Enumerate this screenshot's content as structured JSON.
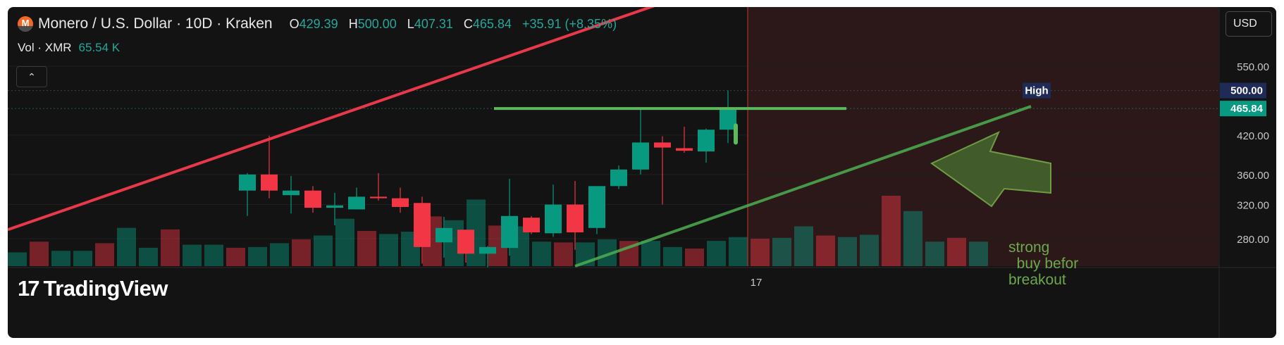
{
  "header": {
    "symbol_title": "Monero / U.S. Dollar · 10D · Kraken",
    "logo_glyph": "M",
    "open_label": "O",
    "open_value": "429.39",
    "high_label": "H",
    "high_value": "500.00",
    "low_label": "L",
    "low_value": "407.31",
    "close_label": "C",
    "close_value": "465.84",
    "change": "+35.91 (+8.35%)"
  },
  "volume": {
    "label": "Vol · XMR",
    "value": "65.54 K"
  },
  "collapse_glyph": "⌃",
  "currency_button": "USD",
  "watermark": {
    "mark": "17",
    "text": "TradingView"
  },
  "annotation": "strong\n  buy befor\nbreakout",
  "colors": {
    "up": "#089981",
    "down": "#f23645",
    "trend_red": "#e8394a",
    "trend_green": "#4caf50",
    "resistance": "#5cb85c",
    "future_zone": "#2c1818",
    "bg": "#131313"
  },
  "chart_data": {
    "type": "candlestick",
    "y_ticks": [
      550,
      420,
      360,
      320,
      280
    ],
    "price_badges": [
      {
        "label": "High",
        "value": "500.00"
      },
      {
        "value": "465.84"
      }
    ],
    "x_ticks": [
      "17"
    ],
    "candles": [
      {
        "o": 338,
        "h": 362,
        "l": 306,
        "c": 360
      },
      {
        "o": 360,
        "h": 419,
        "l": 328,
        "c": 338
      },
      {
        "o": 332,
        "h": 358,
        "l": 309,
        "c": 338
      },
      {
        "o": 338,
        "h": 344,
        "l": 310,
        "c": 316
      },
      {
        "o": 316,
        "h": 335,
        "l": 295,
        "c": 319
      },
      {
        "o": 314,
        "h": 342,
        "l": 314,
        "c": 330
      },
      {
        "o": 330,
        "h": 362,
        "l": 325,
        "c": 328
      },
      {
        "o": 328,
        "h": 342,
        "l": 310,
        "c": 317
      },
      {
        "o": 322,
        "h": 330,
        "l": 254,
        "c": 271
      },
      {
        "o": 276,
        "h": 305,
        "l": 260,
        "c": 292
      },
      {
        "o": 290,
        "h": 290,
        "l": 255,
        "c": 264
      },
      {
        "o": 264,
        "h": 272,
        "l": 250,
        "c": 271
      },
      {
        "o": 270,
        "h": 354,
        "l": 262,
        "c": 306
      },
      {
        "o": 304,
        "h": 306,
        "l": 285,
        "c": 287
      },
      {
        "o": 286,
        "h": 346,
        "l": 282,
        "c": 320
      },
      {
        "o": 320,
        "h": 351,
        "l": 268,
        "c": 287
      },
      {
        "o": 292,
        "h": 343,
        "l": 285,
        "c": 344
      },
      {
        "o": 344,
        "h": 373,
        "l": 340,
        "c": 367
      },
      {
        "o": 367,
        "h": 466,
        "l": 360,
        "c": 408
      },
      {
        "o": 408,
        "h": 418,
        "l": 320,
        "c": 400
      },
      {
        "o": 399,
        "h": 434,
        "l": 392,
        "c": 395
      },
      {
        "o": 394,
        "h": 431,
        "l": 377,
        "c": 429
      },
      {
        "o": 429,
        "h": 500,
        "l": 407,
        "c": 466
      }
    ],
    "volumes": [
      18,
      32,
      20,
      20,
      30,
      50,
      24,
      48,
      28,
      28,
      24,
      25,
      30,
      35,
      40,
      62,
      46,
      42,
      45,
      65,
      60,
      87,
      53,
      52,
      32,
      31,
      31,
      35,
      33,
      33,
      25,
      23,
      33,
      38,
      36,
      37,
      52,
      40,
      38,
      41,
      92,
      72,
      32,
      37,
      32
    ],
    "drawings": [
      {
        "kind": "trend_line",
        "color": "red"
      },
      {
        "kind": "trend_line",
        "color": "green"
      },
      {
        "kind": "horizontal_segment",
        "color": "green",
        "price": 466
      },
      {
        "kind": "arrow",
        "direction": "left",
        "color": "green"
      },
      {
        "kind": "text",
        "text": "strong buy befor breakout"
      }
    ]
  }
}
